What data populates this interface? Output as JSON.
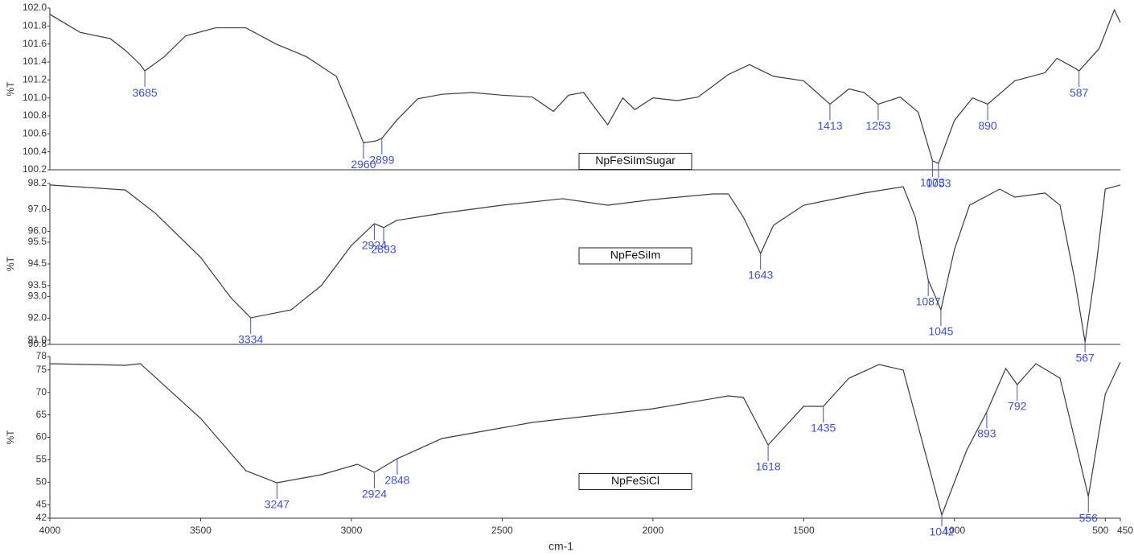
{
  "chart_data": [
    {
      "type": "line",
      "ylabel": "%T",
      "xlim": [
        4000,
        450
      ],
      "ylim": [
        100.2,
        102.0
      ],
      "yticks": [
        {
          "value": 102.0,
          "label": "102.0"
        },
        101.8,
        101.6,
        101.4,
        101.2,
        {
          "value": 101.0,
          "label": "101.0"
        },
        100.8,
        100.6,
        100.4,
        100.2
      ],
      "series": [
        {
          "name": "NpFeSiImSugar",
          "color": "#3a3a3a",
          "x": [
            4000,
            3900,
            3800,
            3750,
            3700,
            3685,
            3620,
            3550,
            3450,
            3350,
            3250,
            3150,
            3050,
            3000,
            2960,
            2920,
            2899,
            2850,
            2780,
            2700,
            2600,
            2500,
            2400,
            2330,
            2280,
            2230,
            2150,
            2100,
            2060,
            2000,
            1920,
            1850,
            1750,
            1680,
            1600,
            1500,
            1413,
            1350,
            1300,
            1253,
            1180,
            1120,
            1073,
            1053,
            1000,
            940,
            890,
            800,
            700,
            660,
            600,
            587,
            520,
            470,
            450
          ],
          "values": [
            101.93,
            101.73,
            101.66,
            101.53,
            101.37,
            101.3,
            101.46,
            101.69,
            101.78,
            101.78,
            101.6,
            101.46,
            101.24,
            100.84,
            100.5,
            100.52,
            100.55,
            100.75,
            100.99,
            101.04,
            101.06,
            101.03,
            101.01,
            100.85,
            101.03,
            101.06,
            100.7,
            101.0,
            100.87,
            101.0,
            100.97,
            101.01,
            101.26,
            101.37,
            101.24,
            101.19,
            100.93,
            101.1,
            101.06,
            100.93,
            101.01,
            100.84,
            100.3,
            100.27,
            100.75,
            101.0,
            100.93,
            101.19,
            101.28,
            101.44,
            101.33,
            101.3,
            101.55,
            101.98,
            101.84
          ]
        }
      ],
      "peaks": [
        3685,
        2960,
        2899,
        1413,
        1253,
        1073,
        1053,
        890,
        587
      ]
    },
    {
      "type": "line",
      "ylabel": "%T",
      "xlim": [
        4000,
        450
      ],
      "ylim": [
        90.8,
        98.2
      ],
      "yticks": [
        98.2,
        {
          "value": 97.0,
          "label": "97.0"
        },
        {
          "value": 96.0,
          "label": "96.0"
        },
        95.5,
        94.5,
        93.5,
        {
          "value": 93.0,
          "label": "93.0"
        },
        {
          "value": 92.0,
          "label": "92.0"
        },
        {
          "value": 91.0,
          "label": "91.0"
        },
        90.8
      ],
      "series": [
        {
          "name": "NpFeSiIm",
          "color": "#3a3a3a",
          "x": [
            4000,
            3750,
            3650,
            3500,
            3400,
            3334,
            3200,
            3100,
            3000,
            2924,
            2893,
            2850,
            2700,
            2500,
            2300,
            2150,
            2000,
            1800,
            1750,
            1700,
            1643,
            1600,
            1500,
            1300,
            1170,
            1130,
            1087,
            1045,
            1000,
            950,
            850,
            800,
            700,
            650,
            600,
            567,
            530,
            500,
            450
          ],
          "values": [
            98.13,
            97.9,
            96.83,
            94.8,
            92.95,
            92.02,
            92.39,
            93.5,
            95.35,
            96.35,
            96.17,
            96.5,
            96.83,
            97.2,
            97.5,
            97.2,
            97.46,
            97.72,
            97.72,
            96.65,
            94.98,
            96.28,
            97.2,
            97.76,
            98.05,
            96.65,
            93.76,
            92.39,
            95.17,
            97.2,
            97.94,
            97.57,
            97.76,
            97.2,
            93.69,
            90.91,
            94.43,
            97.94,
            98.13
          ]
        }
      ],
      "peaks": [
        3334,
        2924,
        2893,
        1643,
        1087,
        1045,
        567
      ]
    },
    {
      "type": "line",
      "ylabel": "%T",
      "xlabel": "cm-1",
      "xlim": [
        4000,
        450
      ],
      "ylim": [
        42,
        78
      ],
      "yticks": [
        78,
        75,
        70,
        65,
        60,
        55,
        50,
        45,
        42
      ],
      "xticks": [
        4000,
        3500,
        3000,
        2500,
        2000,
        1500,
        1000,
        500,
        450
      ],
      "series": [
        {
          "name": "NpFeSiCl",
          "color": "#3a3a3a",
          "x": [
            4000,
            3750,
            3700,
            3500,
            3350,
            3247,
            3100,
            2980,
            2924,
            2848,
            2700,
            2400,
            2000,
            1750,
            1700,
            1618,
            1500,
            1435,
            1350,
            1250,
            1170,
            1042,
            960,
            893,
            830,
            792,
            730,
            650,
            556,
            500,
            450
          ],
          "values": [
            76.39,
            76.03,
            76.39,
            64.21,
            52.57,
            49.88,
            51.67,
            54.0,
            52.21,
            55.25,
            59.73,
            63.31,
            66.36,
            69.22,
            68.87,
            58.3,
            66.9,
            66.9,
            73.16,
            76.21,
            74.96,
            42.72,
            57.04,
            65.64,
            75.31,
            71.73,
            76.39,
            73.16,
            46.84,
            69.58,
            76.75
          ]
        }
      ],
      "peaks": [
        3247,
        2924,
        2848,
        1618,
        1435,
        1042,
        893,
        792,
        556
      ]
    }
  ]
}
